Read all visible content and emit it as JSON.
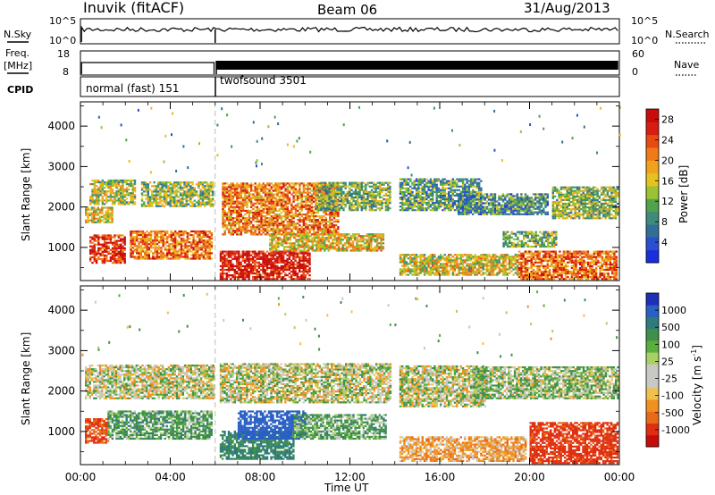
{
  "header": {
    "station": "Inuvik (fitACF)",
    "beam": "Beam 06",
    "date": "31/Aug/2013"
  },
  "strip_labels": {
    "nsky": "N.Sky",
    "nsearch": "N.Search",
    "freq": "Freq.",
    "freq_unit": "[MHz]",
    "nave": "Nave",
    "cpid": "CPID"
  },
  "strip_ticks": {
    "noise_left": [
      "10^5",
      "10^0"
    ],
    "noise_right": [
      "10^5",
      "10^0"
    ],
    "freq_left": [
      "18",
      "8"
    ],
    "freq_right": [
      "60",
      "0"
    ]
  },
  "cpid_modes": [
    {
      "label": "normal (fast) 151",
      "start_hour": 0.0,
      "end_hour": 6.0
    },
    {
      "label": "twofsound 3501",
      "start_hour": 6.0,
      "end_hour": 24.0
    }
  ],
  "colors": {
    "power_scale": [
      "#1a2ee0",
      "#2a4fd0",
      "#2f6f98",
      "#3f8a7a",
      "#52a24a",
      "#9ac232",
      "#e6c21e",
      "#f0a21c",
      "#f07a18",
      "#e84a14",
      "#d81c10",
      "#c80c0c"
    ],
    "velocity_scale": [
      "#1f2fb8",
      "#2a5fc4",
      "#2f7a7a",
      "#3f9048",
      "#5aae3c",
      "#a8d064",
      "#c8c8c4",
      "#c8c8c4",
      "#f0c04c",
      "#f09020",
      "#e86a18",
      "#e02e10",
      "#c80c0c"
    ]
  },
  "chart_data": [
    {
      "type": "heatmap",
      "panel": "power",
      "xlabel": "",
      "ylabel": "Slant Range [km]",
      "x_ticks": [
        "00:00",
        "04:00",
        "08:00",
        "12:00",
        "16:00",
        "20:00",
        "00:00"
      ],
      "xlim_hours": [
        0,
        24
      ],
      "y_ticks": [
        "1000",
        "2000",
        "3000",
        "4000"
      ],
      "ylim_km": [
        180,
        4600
      ],
      "colorbar": {
        "label": "Power [dB]",
        "ticks": [
          "4",
          "8",
          "12",
          "16",
          "20",
          "24",
          "28"
        ],
        "range": [
          0,
          30
        ]
      },
      "echo_regions": [
        {
          "start_hour": 0.4,
          "end_hour": 2.4,
          "range_low_km": 2050,
          "range_high_km": 2650,
          "level_db": 14
        },
        {
          "start_hour": 2.7,
          "end_hour": 5.9,
          "range_low_km": 2000,
          "range_high_km": 2600,
          "level_db": 13
        },
        {
          "start_hour": 0.2,
          "end_hour": 1.4,
          "range_low_km": 1600,
          "range_high_km": 2000,
          "level_db": 16
        },
        {
          "start_hour": 0.4,
          "end_hour": 2.0,
          "range_low_km": 600,
          "range_high_km": 1300,
          "level_db": 26
        },
        {
          "start_hour": 2.2,
          "end_hour": 5.8,
          "range_low_km": 700,
          "range_high_km": 1400,
          "level_db": 22
        },
        {
          "start_hour": 6.2,
          "end_hour": 10.2,
          "range_low_km": 200,
          "range_high_km": 900,
          "level_db": 28
        },
        {
          "start_hour": 6.3,
          "end_hour": 11.5,
          "range_low_km": 1300,
          "range_high_km": 2600,
          "level_db": 21
        },
        {
          "start_hour": 10.5,
          "end_hour": 13.8,
          "range_low_km": 1900,
          "range_high_km": 2600,
          "level_db": 12
        },
        {
          "start_hour": 8.4,
          "end_hour": 13.5,
          "range_low_km": 900,
          "range_high_km": 1350,
          "level_db": 17
        },
        {
          "start_hour": 14.2,
          "end_hour": 17.8,
          "range_low_km": 1900,
          "range_high_km": 2700,
          "level_db": 10
        },
        {
          "start_hour": 16.8,
          "end_hour": 20.8,
          "range_low_km": 1800,
          "range_high_km": 2300,
          "level_db": 9
        },
        {
          "start_hour": 18.8,
          "end_hour": 21.2,
          "range_low_km": 1000,
          "range_high_km": 1400,
          "level_db": 12
        },
        {
          "start_hour": 21.0,
          "end_hour": 23.9,
          "range_low_km": 1700,
          "range_high_km": 2500,
          "level_db": 13
        },
        {
          "start_hour": 14.2,
          "end_hour": 19.5,
          "range_low_km": 300,
          "range_high_km": 800,
          "level_db": 16
        },
        {
          "start_hour": 19.5,
          "end_hour": 23.9,
          "range_low_km": 200,
          "range_high_km": 900,
          "level_db": 22
        }
      ]
    },
    {
      "type": "heatmap",
      "panel": "velocity",
      "xlabel": "Time UT",
      "ylabel": "Slant Range [km]",
      "x_ticks": [
        "00:00",
        "04:00",
        "08:00",
        "12:00",
        "16:00",
        "20:00",
        "00:00"
      ],
      "xlim_hours": [
        0,
        24
      ],
      "y_ticks": [
        "1000",
        "2000",
        "3000",
        "4000"
      ],
      "ylim_km": [
        180,
        4600
      ],
      "colorbar": {
        "label": "Velocity [m s",
        "label_sup": "-1",
        "label_end": "]",
        "ticks": [
          "1000",
          "500",
          "100",
          "25",
          "-25",
          "-100",
          "-500",
          "-1000"
        ],
        "range": [
          -1200,
          1200
        ]
      },
      "echo_regions": [
        {
          "start_hour": 0.2,
          "end_hour": 5.9,
          "range_low_km": 1800,
          "range_high_km": 2650,
          "level_ms": 0
        },
        {
          "start_hour": 6.2,
          "end_hour": 13.8,
          "range_low_km": 1700,
          "range_high_km": 2650,
          "level_ms": 0
        },
        {
          "start_hour": 0.2,
          "end_hour": 1.2,
          "range_low_km": 700,
          "range_high_km": 1300,
          "level_ms": -500
        },
        {
          "start_hour": 1.2,
          "end_hour": 5.8,
          "range_low_km": 800,
          "range_high_km": 1500,
          "level_ms": 150
        },
        {
          "start_hour": 6.2,
          "end_hour": 9.5,
          "range_low_km": 300,
          "range_high_km": 1000,
          "level_ms": 300
        },
        {
          "start_hour": 7.0,
          "end_hour": 10.0,
          "range_low_km": 800,
          "range_high_km": 1500,
          "level_ms": 700
        },
        {
          "start_hour": 9.5,
          "end_hour": 13.6,
          "range_low_km": 800,
          "range_high_km": 1400,
          "level_ms": 120
        },
        {
          "start_hour": 14.2,
          "end_hour": 18.0,
          "range_low_km": 1600,
          "range_high_km": 2600,
          "level_ms": 0
        },
        {
          "start_hour": 17.5,
          "end_hour": 23.9,
          "range_low_km": 1800,
          "range_high_km": 2600,
          "level_ms": 60
        },
        {
          "start_hour": 14.2,
          "end_hour": 19.8,
          "range_low_km": 250,
          "range_high_km": 850,
          "level_ms": -150
        },
        {
          "start_hour": 20.0,
          "end_hour": 23.9,
          "range_low_km": 200,
          "range_high_km": 1200,
          "level_ms": -600
        }
      ]
    }
  ]
}
